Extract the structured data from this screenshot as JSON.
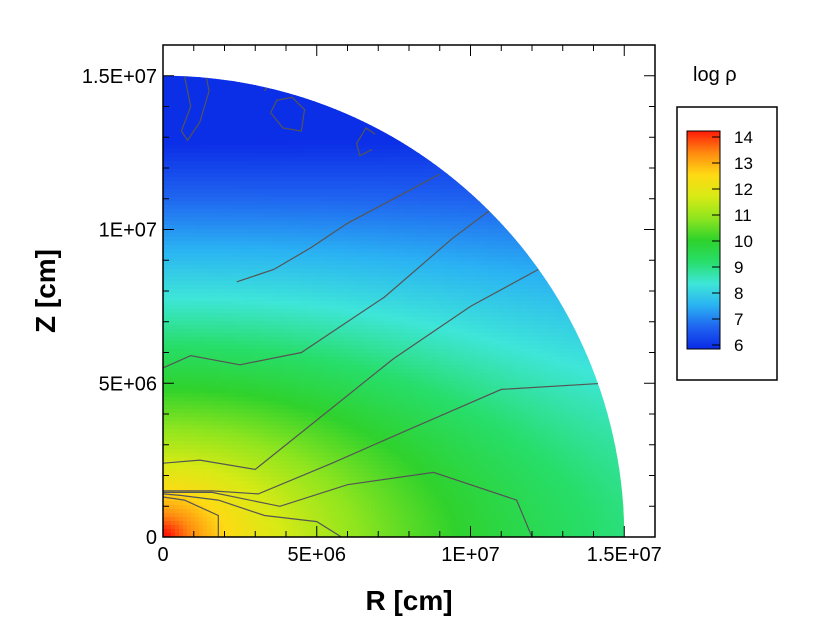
{
  "chart_data": {
    "type": "heatmap",
    "title": "",
    "xlabel": "R [cm]",
    "ylabel": "Z [cm]",
    "xlim": [
      0,
      16000000
    ],
    "ylim": [
      0,
      16000000
    ],
    "x_ticks": [
      {
        "value": 0,
        "label": "0"
      },
      {
        "value": 5000000,
        "label": "5E+06"
      },
      {
        "value": 10000000,
        "label": "1E+07"
      },
      {
        "value": 15000000,
        "label": "1.5E+07"
      }
    ],
    "y_ticks": [
      {
        "value": 0,
        "label": "0"
      },
      {
        "value": 5000000,
        "label": "5E+06"
      },
      {
        "value": 10000000,
        "label": "1E+07"
      },
      {
        "value": 15000000,
        "label": "1.5E+07"
      }
    ],
    "domain": {
      "shape": "quarter-disk",
      "radius": 15000000
    },
    "colorbar": {
      "title": "log ρ",
      "min": 6,
      "max": 14,
      "labels": [
        "14",
        "13",
        "12",
        "11",
        "10",
        "9",
        "8",
        "7",
        "6"
      ],
      "colors": [
        "#0a2ae6",
        "#1f63f0",
        "#2ab2f3",
        "#3ee6d8",
        "#27de6a",
        "#2fd22c",
        "#8fe51e",
        "#d8ea15",
        "#ffd914",
        "#ff8a10",
        "#ff1a08"
      ]
    },
    "contours": [
      {
        "level": 12,
        "points": [
          [
            1800000,
            0
          ],
          [
            1800000,
            700000
          ],
          [
            700000,
            1200000
          ],
          [
            0,
            1300000
          ]
        ]
      },
      {
        "level": 11,
        "points": [
          [
            5800000,
            0
          ],
          [
            5000000,
            500000
          ],
          [
            3300000,
            700000
          ],
          [
            1800000,
            1200000
          ],
          [
            600000,
            1350000
          ],
          [
            0,
            1400000
          ]
        ]
      },
      {
        "level": 10,
        "points": [
          [
            12000000,
            0
          ],
          [
            11500000,
            1200000
          ],
          [
            8800000,
            2100000
          ],
          [
            6000000,
            1700000
          ],
          [
            3800000,
            1000000
          ],
          [
            1600000,
            1450000
          ],
          [
            0,
            1450000
          ]
        ]
      },
      {
        "level": 9,
        "points": [
          [
            14300000,
            5000000
          ],
          [
            11000000,
            4800000
          ],
          [
            8000000,
            3500000
          ],
          [
            5500000,
            2400000
          ],
          [
            3100000,
            1400000
          ],
          [
            1600000,
            1500000
          ],
          [
            0,
            1500000
          ]
        ]
      },
      {
        "level": 8,
        "points": [
          [
            12200000,
            8700000
          ],
          [
            10000000,
            7500000
          ],
          [
            7500000,
            5800000
          ],
          [
            5000000,
            3800000
          ],
          [
            3000000,
            2200000
          ],
          [
            1200000,
            2500000
          ],
          [
            0,
            2400000
          ]
        ]
      },
      {
        "level": 7,
        "points": [
          [
            10600000,
            10600000
          ],
          [
            9400000,
            9700000
          ],
          [
            7200000,
            7800000
          ],
          [
            4500000,
            6000000
          ],
          [
            2500000,
            5600000
          ],
          [
            900000,
            5900000
          ],
          [
            0,
            5500000
          ]
        ]
      },
      {
        "level": 6,
        "points": [
          [
            9000000,
            11800000
          ],
          [
            7500000,
            11000000
          ],
          [
            6000000,
            10200000
          ],
          [
            4800000,
            9400000
          ],
          [
            3600000,
            8700000
          ],
          [
            2400000,
            8300000
          ]
        ]
      },
      {
        "level": 6,
        "points": [
          [
            700000,
            15000000
          ],
          [
            900000,
            14000000
          ],
          [
            600000,
            13200000
          ],
          [
            800000,
            12900000
          ],
          [
            1200000,
            13500000
          ],
          [
            1500000,
            14500000
          ],
          [
            1400000,
            15000000
          ]
        ]
      },
      {
        "level": 6,
        "points": [
          [
            3500000,
            13800000
          ],
          [
            3900000,
            13300000
          ],
          [
            4500000,
            13200000
          ],
          [
            4600000,
            13900000
          ],
          [
            4200000,
            14300000
          ],
          [
            3700000,
            14200000
          ],
          [
            3500000,
            13800000
          ]
        ]
      },
      {
        "level": 6,
        "points": [
          [
            6800000,
            12600000
          ],
          [
            6400000,
            12400000
          ],
          [
            6300000,
            12800000
          ],
          [
            6600000,
            13300000
          ],
          [
            6900000,
            13100000
          ]
        ]
      },
      {
        "level": 6,
        "points": [
          [
            3300000,
            14500000
          ],
          [
            3500000,
            14800000
          ],
          [
            3300000,
            15000000
          ]
        ]
      }
    ]
  }
}
